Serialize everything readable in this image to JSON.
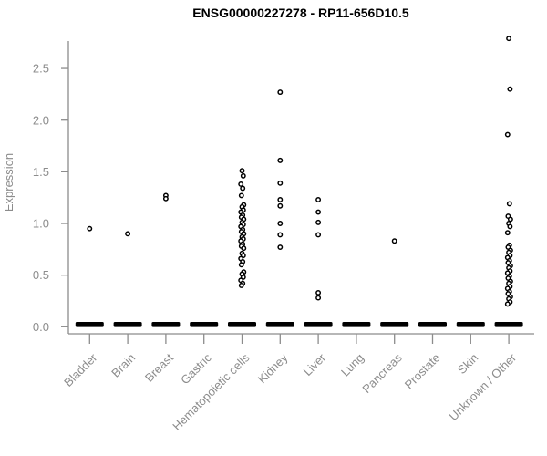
{
  "chart_data": {
    "type": "scatter",
    "subtype": "strip-plot",
    "title": "ENSG00000227278 - RP11-656D10.5",
    "ylabel": "Expression",
    "xlabel": "",
    "ylim": [
      0,
      2.85
    ],
    "yticks": [
      "0.0",
      "0.5",
      "1.0",
      "1.5",
      "2.0",
      "2.5"
    ],
    "ytick_values": [
      0.0,
      0.5,
      1.0,
      1.5,
      2.0,
      2.5
    ],
    "grid": false,
    "legend": false,
    "point_style": "small open black circle",
    "colors": {
      "points": "#000000",
      "zero_bar": "#000000",
      "axis": "#8c8c8c",
      "tick_labels": "#8c8c8c",
      "title": "#000000",
      "background": "#ffffff"
    },
    "categories": [
      "Bladder",
      "Brain",
      "Breast",
      "Gastric",
      "Hematopoietic cells",
      "Kidney",
      "Liver",
      "Lung",
      "Pancreas",
      "Prostate",
      "Skin",
      "Unknown / Other"
    ],
    "series": [
      {
        "category": "Bladder",
        "zero_cluster": true,
        "nonzero_points": [
          0.95
        ]
      },
      {
        "category": "Brain",
        "zero_cluster": true,
        "nonzero_points": [
          0.9
        ]
      },
      {
        "category": "Breast",
        "zero_cluster": true,
        "nonzero_points": [
          1.27,
          1.24
        ]
      },
      {
        "category": "Gastric",
        "zero_cluster": true,
        "nonzero_points": []
      },
      {
        "category": "Hematopoietic cells",
        "zero_cluster": true,
        "nonzero_points": [
          1.51,
          1.46,
          1.38,
          1.34,
          1.27,
          1.18,
          1.16,
          1.13,
          1.11,
          1.08,
          1.06,
          1.04,
          1.01,
          0.99,
          0.97,
          0.94,
          0.92,
          0.9,
          0.87,
          0.85,
          0.83,
          0.8,
          0.78,
          0.76,
          0.71,
          0.69,
          0.66,
          0.63,
          0.6,
          0.53,
          0.51,
          0.48,
          0.45,
          0.42,
          0.4
        ]
      },
      {
        "category": "Kidney",
        "zero_cluster": true,
        "nonzero_points": [
          2.27,
          1.61,
          1.39,
          1.23,
          1.17,
          1.0,
          0.89,
          0.77
        ]
      },
      {
        "category": "Liver",
        "zero_cluster": true,
        "nonzero_points": [
          1.23,
          1.11,
          1.01,
          0.89,
          0.33,
          0.28
        ]
      },
      {
        "category": "Lung",
        "zero_cluster": true,
        "nonzero_points": []
      },
      {
        "category": "Pancreas",
        "zero_cluster": true,
        "nonzero_points": [
          0.83
        ]
      },
      {
        "category": "Prostate",
        "zero_cluster": true,
        "nonzero_points": []
      },
      {
        "category": "Skin",
        "zero_cluster": true,
        "nonzero_points": []
      },
      {
        "category": "Unknown / Other",
        "zero_cluster": true,
        "nonzero_points": [
          2.79,
          2.3,
          1.86,
          1.19,
          1.07,
          1.04,
          1.0,
          0.97,
          0.91,
          0.79,
          0.77,
          0.74,
          0.72,
          0.69,
          0.67,
          0.64,
          0.62,
          0.59,
          0.57,
          0.54,
          0.52,
          0.49,
          0.47,
          0.44,
          0.42,
          0.39,
          0.37,
          0.34,
          0.32,
          0.29,
          0.27,
          0.24,
          0.22
        ]
      }
    ]
  }
}
